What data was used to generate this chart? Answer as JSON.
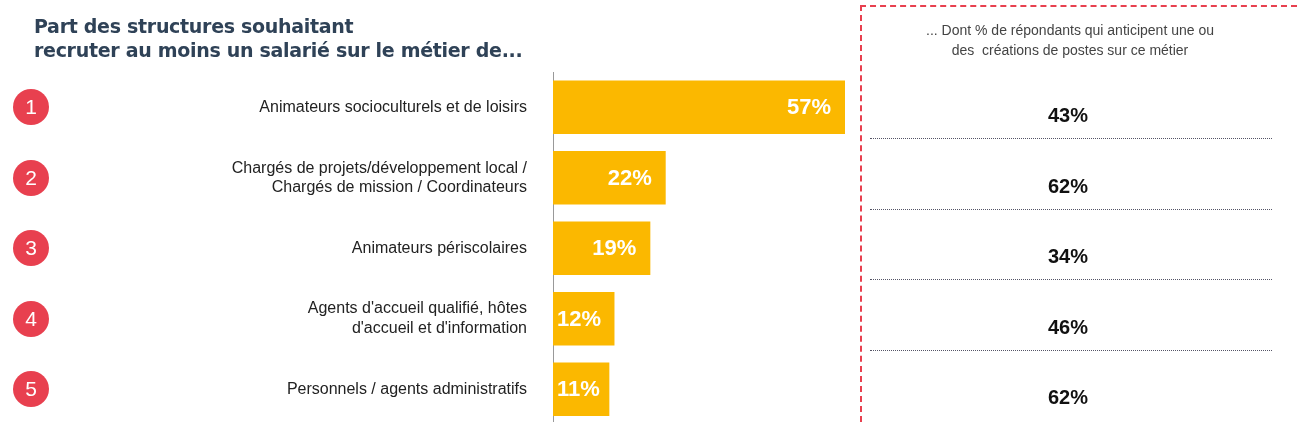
{
  "chart_data": [
    {
      "type": "bar",
      "orientation": "horizontal",
      "title": "Part des structures souhaitant\nrecruter au moins un salarié sur le métier de...",
      "categories": [
        "Animateurs socioculturels et de loisirs",
        "Chargés de projets/développement local /\nChargés de mission / Coordinateurs",
        "Animateurs périscolaires",
        "Agents d'accueil qualifié, hôtes\nd'accueil et d'information",
        "Personnels / agents administratifs"
      ],
      "values": [
        57,
        22,
        19,
        12,
        11
      ],
      "value_labels": [
        "57%",
        "22%",
        "19%",
        "12%",
        "11%"
      ],
      "color": "#fbb800",
      "annotations": [
        "1",
        "2",
        "3",
        "4",
        "5"
      ],
      "legend": false,
      "grid": false
    },
    {
      "type": "other",
      "title": "... Dont % de répondants qui anticipent une ou\ndes  créations de postes sur ce métier",
      "annotations": [
        "43%",
        "62%",
        "34%",
        "46%",
        "62%"
      ]
    }
  ]
}
